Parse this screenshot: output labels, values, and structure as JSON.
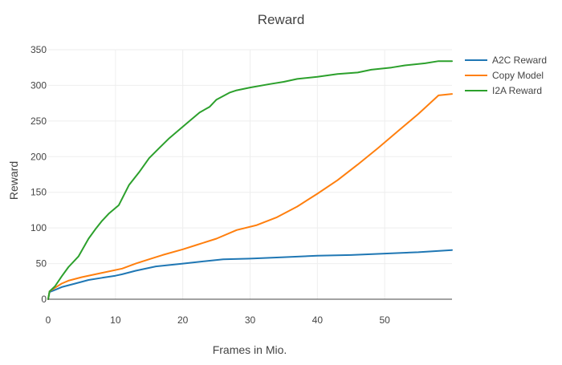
{
  "chart_data": {
    "type": "line",
    "title": "Reward",
    "xlabel": "Frames in Mio.",
    "ylabel": "Reward",
    "xlim": [
      0,
      60
    ],
    "ylim": [
      0,
      350
    ],
    "x_ticks": [
      0,
      10,
      20,
      30,
      40,
      50
    ],
    "y_ticks": [
      0,
      50,
      100,
      150,
      200,
      250,
      300,
      350
    ],
    "grid": true,
    "legend_position": "top-right",
    "series": [
      {
        "name": "A2C Reward",
        "color": "#1f77b4",
        "x": [
          0,
          0.2,
          1,
          2,
          4,
          6,
          8,
          10,
          11,
          13,
          16,
          20,
          24,
          26,
          30,
          35,
          40,
          45,
          50,
          55,
          60
        ],
        "y": [
          0,
          10,
          13,
          17,
          22,
          27,
          30,
          33,
          35,
          40,
          46,
          50,
          54,
          56,
          57,
          59,
          61,
          62,
          64,
          66,
          69
        ]
      },
      {
        "name": "Copy Model",
        "color": "#ff7f0e",
        "x": [
          0,
          0.2,
          1,
          2,
          3,
          5,
          8,
          11,
          13,
          15,
          17,
          20,
          22,
          25,
          28,
          31,
          34,
          37,
          40,
          43,
          46,
          49,
          52,
          55,
          58,
          60
        ],
        "y": [
          0,
          11,
          16,
          22,
          26,
          31,
          37,
          43,
          50,
          56,
          62,
          70,
          76,
          85,
          97,
          104,
          115,
          130,
          148,
          167,
          189,
          212,
          236,
          260,
          286,
          288
        ]
      },
      {
        "name": "I2A Reward",
        "color": "#2ca02c",
        "x": [
          0,
          0.2,
          1,
          2,
          3,
          4.5,
          6,
          7,
          8,
          9,
          10.5,
          12,
          13.5,
          15,
          16.5,
          18,
          19.5,
          21,
          22.5,
          24,
          25,
          26,
          27,
          28,
          30,
          33,
          35,
          37,
          40,
          43,
          46,
          48,
          51,
          53,
          56,
          58,
          60
        ],
        "y": [
          0,
          11,
          18,
          32,
          45,
          60,
          85,
          98,
          110,
          120,
          132,
          160,
          178,
          198,
          212,
          226,
          238,
          250,
          262,
          270,
          280,
          285,
          290,
          293,
          297,
          302,
          305,
          309,
          312,
          316,
          318,
          322,
          325,
          328,
          331,
          334,
          334
        ]
      }
    ]
  }
}
